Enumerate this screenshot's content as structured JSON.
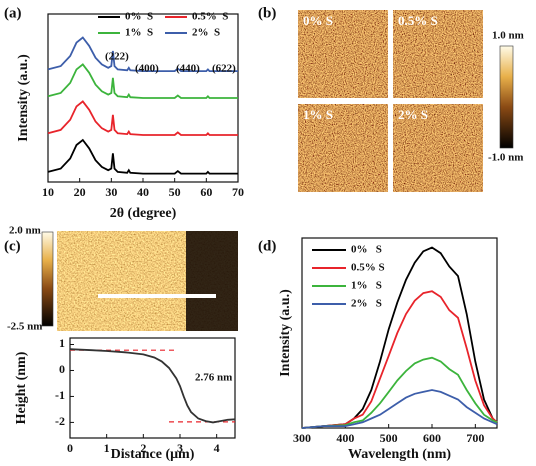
{
  "chart_data": [
    {
      "type": "line",
      "panel": "(a)",
      "xlabel": "2θ (degree)",
      "ylabel": "Intensity (a.u.)",
      "xlim": [
        10,
        70
      ],
      "xticks": [
        10,
        20,
        30,
        40,
        50,
        60,
        70
      ],
      "ylim": [
        0,
        1
      ],
      "annotations": [
        "(222)",
        "(400)",
        "(440)",
        "(622)"
      ],
      "x": [
        10,
        14,
        17,
        19,
        21,
        23,
        25,
        27,
        29,
        30,
        30.5,
        31,
        32,
        35,
        35.5,
        36,
        40,
        45,
        50,
        51,
        52,
        55,
        60,
        60.5,
        61,
        65,
        70
      ],
      "series": [
        {
          "name": "0%  S",
          "color": "#000000",
          "values": [
            0.06,
            0.08,
            0.14,
            0.22,
            0.25,
            0.2,
            0.13,
            0.09,
            0.07,
            0.08,
            0.17,
            0.08,
            0.06,
            0.055,
            0.07,
            0.055,
            0.05,
            0.05,
            0.05,
            0.065,
            0.05,
            0.05,
            0.05,
            0.06,
            0.05,
            0.05,
            0.05
          ]
        },
        {
          "name": "0.5%  S",
          "color": "#e8242b",
          "values": [
            0.29,
            0.31,
            0.37,
            0.45,
            0.48,
            0.43,
            0.36,
            0.32,
            0.3,
            0.31,
            0.4,
            0.31,
            0.29,
            0.285,
            0.3,
            0.285,
            0.28,
            0.28,
            0.28,
            0.295,
            0.28,
            0.28,
            0.28,
            0.29,
            0.28,
            0.28,
            0.28
          ]
        },
        {
          "name": "1%  S",
          "color": "#3cb43c",
          "values": [
            0.51,
            0.53,
            0.59,
            0.67,
            0.7,
            0.65,
            0.58,
            0.54,
            0.52,
            0.53,
            0.62,
            0.53,
            0.51,
            0.505,
            0.52,
            0.505,
            0.5,
            0.5,
            0.5,
            0.515,
            0.5,
            0.5,
            0.5,
            0.51,
            0.5,
            0.5,
            0.5
          ]
        },
        {
          "name": "2%  S",
          "color": "#3d5eaa",
          "values": [
            0.67,
            0.69,
            0.75,
            0.83,
            0.86,
            0.81,
            0.74,
            0.7,
            0.68,
            0.69,
            0.78,
            0.69,
            0.67,
            0.665,
            0.68,
            0.665,
            0.66,
            0.66,
            0.66,
            0.675,
            0.66,
            0.66,
            0.66,
            0.67,
            0.66,
            0.66,
            0.66
          ]
        }
      ]
    },
    {
      "type": "line",
      "xlabel": "Distance (μm)",
      "ylabel": "Height (nm)",
      "xlim": [
        0,
        4.5
      ],
      "xticks": [
        0,
        1,
        2,
        3,
        4
      ],
      "ylim": [
        -2.6,
        1.25
      ],
      "yticks": [
        1,
        0,
        -1,
        -2
      ],
      "annotations": [
        "2.76 nm"
      ],
      "ref_lines": [
        0.78,
        -1.98
      ],
      "ref_color": "#e8242b",
      "color": "#333333",
      "x": [
        0,
        0.3,
        0.6,
        1,
        1.5,
        2,
        2.3,
        2.5,
        2.7,
        2.9,
        3.0,
        3.1,
        3.2,
        3.3,
        3.5,
        3.7,
        3.9,
        4.1,
        4.3,
        4.5
      ],
      "values": [
        0.82,
        0.8,
        0.78,
        0.75,
        0.7,
        0.62,
        0.5,
        0.35,
        0.1,
        -0.3,
        -0.6,
        -1.0,
        -1.35,
        -1.6,
        -1.85,
        -1.95,
        -2.0,
        -1.95,
        -1.9,
        -1.88
      ]
    },
    {
      "type": "line",
      "panel": "(d)",
      "xlabel": "Wavelength (nm)",
      "ylabel": "Intensity (a.u.)",
      "xlim": [
        300,
        750
      ],
      "xticks": [
        300,
        400,
        500,
        600,
        700
      ],
      "ylim": [
        0,
        1
      ],
      "x": [
        300,
        350,
        400,
        420,
        440,
        460,
        480,
        500,
        520,
        540,
        560,
        580,
        600,
        620,
        640,
        660,
        680,
        700,
        720,
        740,
        750
      ],
      "series": [
        {
          "name": "0%   S",
          "color": "#000000",
          "values": [
            0,
            0.01,
            0.02,
            0.05,
            0.1,
            0.2,
            0.35,
            0.52,
            0.66,
            0.78,
            0.87,
            0.93,
            0.95,
            0.92,
            0.85,
            0.8,
            0.6,
            0.35,
            0.15,
            0.05,
            0.03
          ]
        },
        {
          "name": "0.5% S",
          "color": "#e8242b",
          "values": [
            0,
            0.01,
            0.02,
            0.05,
            0.07,
            0.14,
            0.26,
            0.38,
            0.5,
            0.6,
            0.67,
            0.71,
            0.72,
            0.69,
            0.62,
            0.58,
            0.42,
            0.25,
            0.12,
            0.05,
            0.03
          ]
        },
        {
          "name": "1%   S",
          "color": "#3cb43c",
          "values": [
            0,
            0.01,
            0.015,
            0.03,
            0.04,
            0.08,
            0.13,
            0.19,
            0.25,
            0.3,
            0.34,
            0.36,
            0.37,
            0.35,
            0.31,
            0.28,
            0.2,
            0.13,
            0.07,
            0.04,
            0.03
          ]
        },
        {
          "name": "2%   S",
          "color": "#3d5eaa",
          "values": [
            0,
            0.01,
            0.01,
            0.02,
            0.03,
            0.05,
            0.07,
            0.1,
            0.13,
            0.16,
            0.18,
            0.19,
            0.2,
            0.19,
            0.17,
            0.15,
            0.11,
            0.08,
            0.05,
            0.03,
            0.02
          ]
        }
      ]
    }
  ],
  "afm_images": {
    "panel": "(b)",
    "labels": [
      "0% S",
      "0.5% S",
      "1% S",
      "2% S"
    ],
    "colorbar": [
      "1.0 nm",
      "-1.0 nm"
    ]
  },
  "afm_map": {
    "panel": "(c)",
    "colorbar": [
      "2.0 nm",
      "-2.5 nm"
    ]
  }
}
